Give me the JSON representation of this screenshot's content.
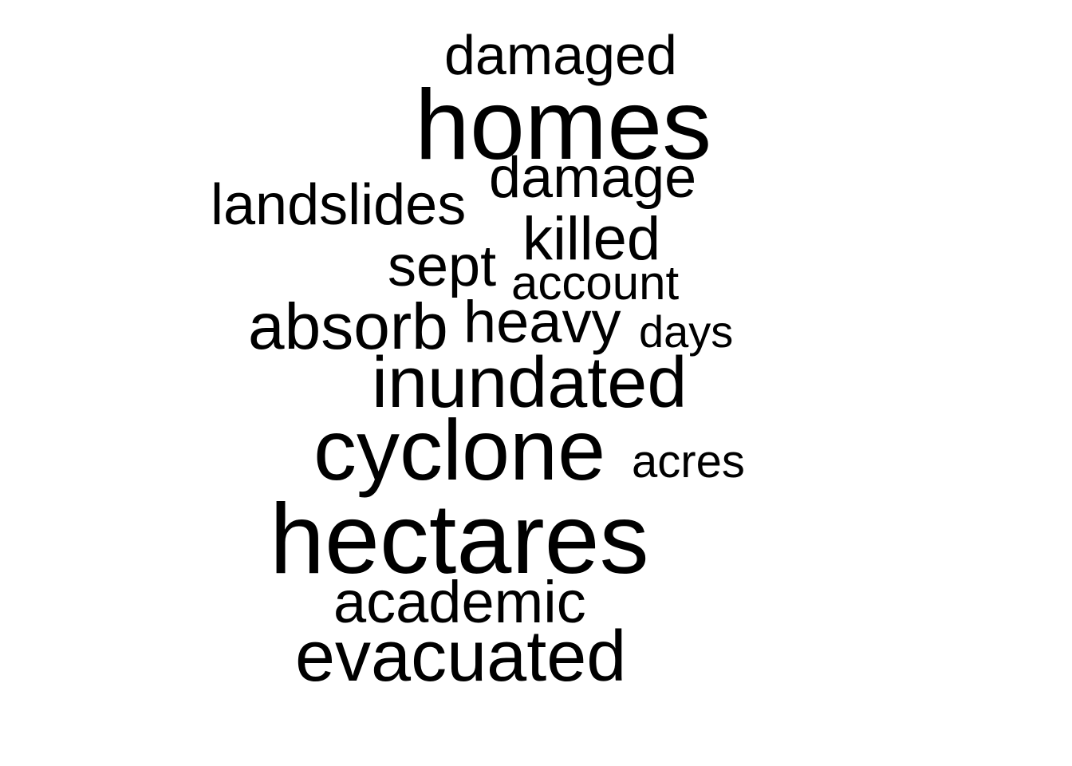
{
  "word_cloud": {
    "words": {
      "damaged": "damaged",
      "homes": "homes",
      "damage": "damage",
      "landslides": "landslides",
      "killed": "killed",
      "sept": "sept",
      "account": "account",
      "absorb": "absorb",
      "heavy": "heavy",
      "days": "days",
      "inundated": "inundated",
      "cyclone": "cyclone",
      "acres": "acres",
      "hectares": "hectares",
      "academic": "academic",
      "evacuated": "evacuated"
    },
    "text_color": "#000000",
    "background_color": "#ffffff"
  }
}
